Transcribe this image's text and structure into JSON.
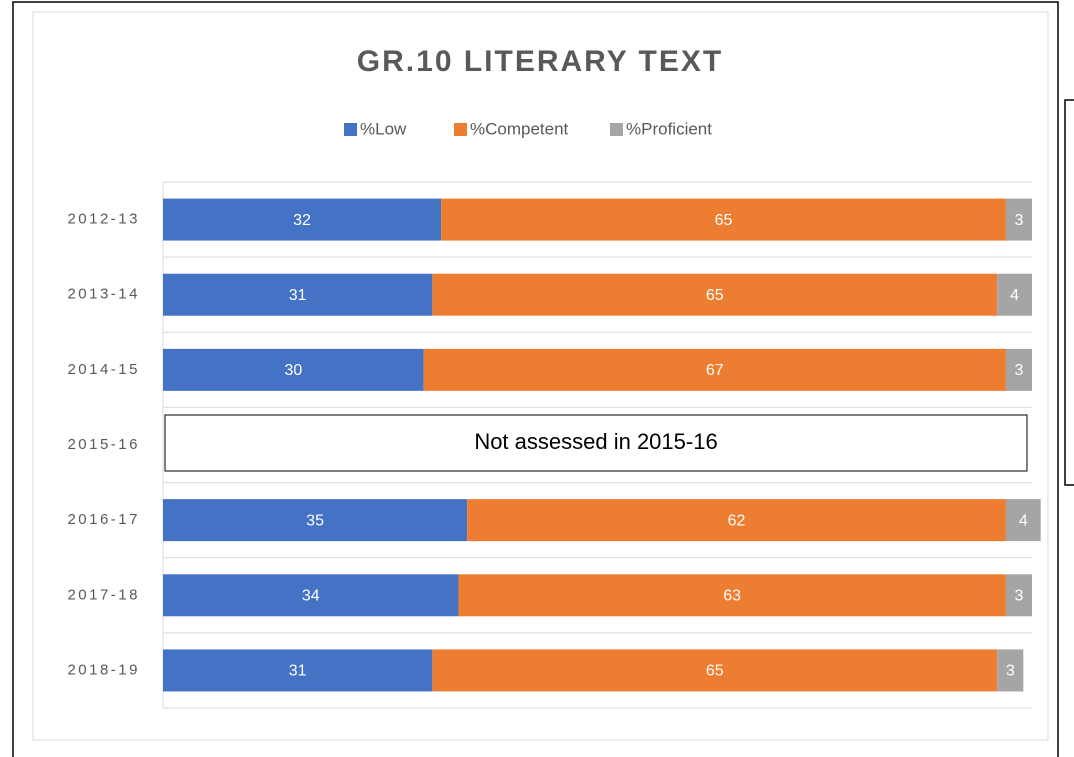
{
  "chart_data": {
    "type": "stacked_barh",
    "title": "GR.10 LITERARY TEXT",
    "categories": [
      "2012-13",
      "2013-14",
      "2014-15",
      "2015-16",
      "2016-17",
      "2017-18",
      "2018-19"
    ],
    "series": [
      {
        "name": "%Low",
        "color": "#4472c4",
        "values": [
          32,
          31,
          30,
          null,
          35,
          34,
          31
        ]
      },
      {
        "name": "%Competent",
        "color": "#ed7d31",
        "values": [
          65,
          65,
          67,
          null,
          62,
          63,
          65
        ]
      },
      {
        "name": "%Proficient",
        "color": "#a5a5a5",
        "values": [
          3,
          4,
          3,
          null,
          4,
          3,
          3
        ]
      }
    ],
    "xlim": [
      0,
      100
    ],
    "annotation": "Not assessed in 2015-16",
    "legend": "top"
  }
}
